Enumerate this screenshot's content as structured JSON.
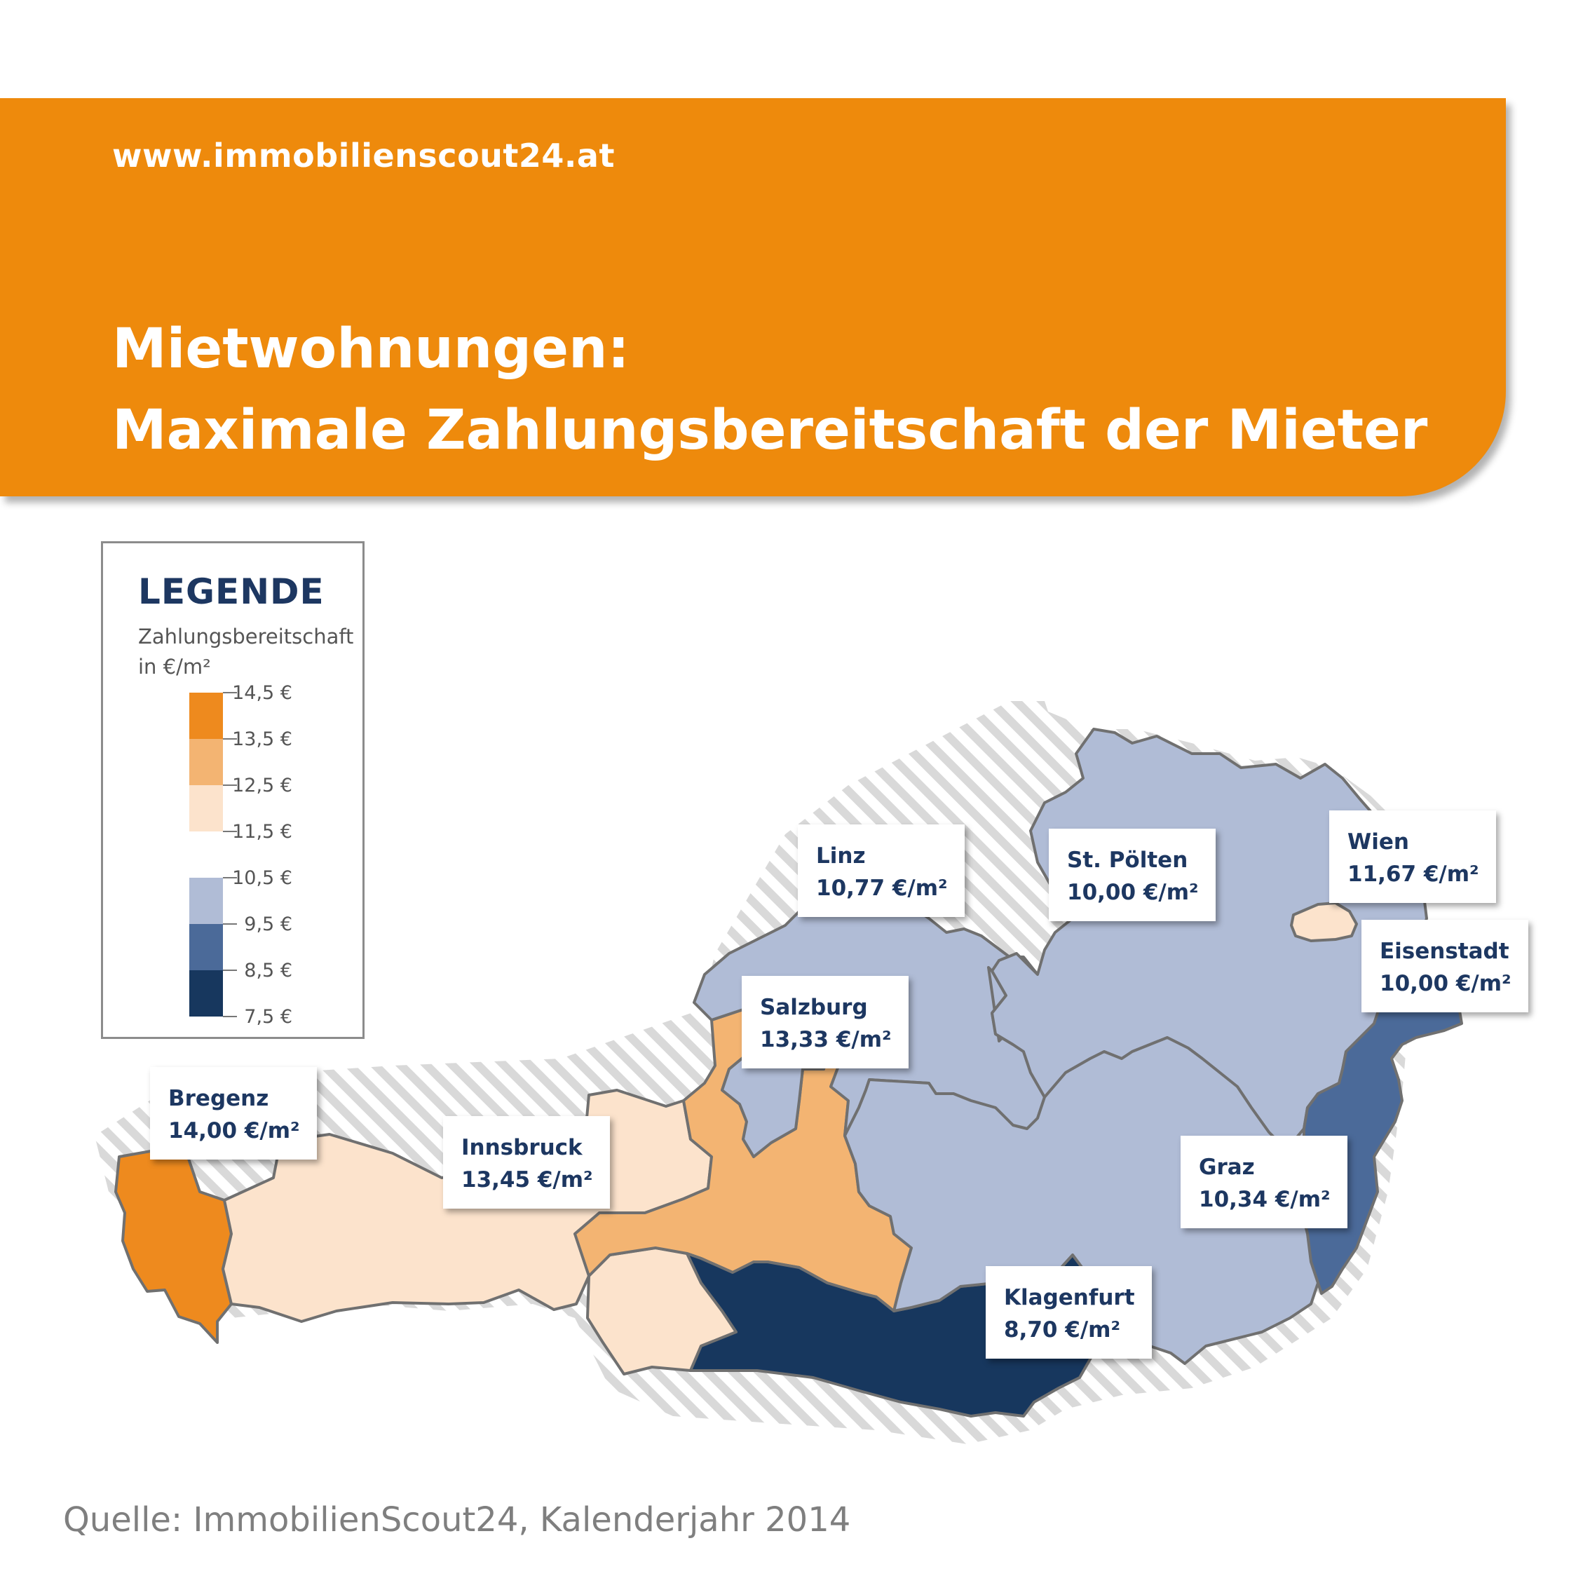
{
  "header": {
    "url": "www.immobilienscout24.at",
    "title_line1": "Mietwohnungen:",
    "title_line2": "Maximale Zahlungsbereitschaft der Mieter"
  },
  "legend": {
    "title": "LEGENDE",
    "subtitle_line1": "Zahlungsbereitschaft",
    "subtitle_line2": "in €/m²",
    "ticks": [
      "14,5 €",
      "13,5 €",
      "12,5 €",
      "11,5 €",
      "10,5 €",
      "9,5 €",
      "8,5 €",
      "7,5 €"
    ],
    "colors": [
      "#ee8a1e",
      "#f3b472",
      "#fce3cc",
      "#ffffff",
      "#b0bcd6",
      "#4b6a99",
      "#17375e"
    ]
  },
  "cities": [
    {
      "name": "Linz",
      "value": "10,77 €/m²"
    },
    {
      "name": "St. Pölten",
      "value": "10,00 €/m²"
    },
    {
      "name": "Wien",
      "value": "11,67 €/m²"
    },
    {
      "name": "Eisenstadt",
      "value": "10,00 €/m²"
    },
    {
      "name": "Salzburg",
      "value": "13,33 €/m²"
    },
    {
      "name": "Bregenz",
      "value": "14,00 €/m²"
    },
    {
      "name": "Innsbruck",
      "value": "13,45 €/m²"
    },
    {
      "name": "Graz",
      "value": "10,34 €/m²"
    },
    {
      "name": "Klagenfurt",
      "value": "8,70 €/m²"
    }
  ],
  "footer": {
    "source": "Quelle: ImmobilienScout24, Kalenderjahr 2014"
  }
}
